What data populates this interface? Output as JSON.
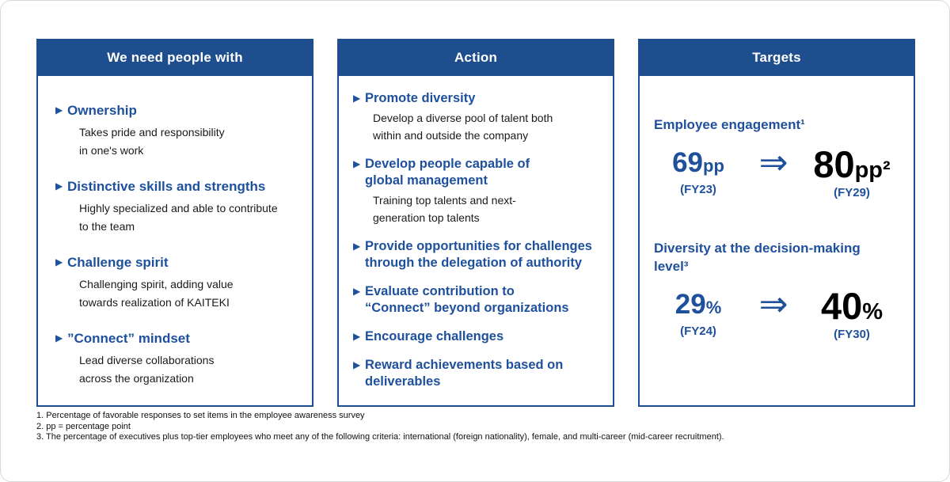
{
  "colors": {
    "header-blue": "#1F4E8E",
    "text-blue": "#1E509C",
    "ink": "#1a1a1a"
  },
  "icons": {
    "bullet": "▶",
    "arrow": "⇒"
  },
  "panels": {
    "need": {
      "title": "We need people with",
      "items": [
        {
          "heading": "Ownership",
          "desc": "Takes pride and responsibility\nin one's work"
        },
        {
          "heading": "Distinctive skills and strengths",
          "desc": "Highly specialized and able to contribute\nto the team"
        },
        {
          "heading": "Challenge spirit",
          "desc": "Challenging spirit, adding value\ntowards realization of KAITEKI"
        },
        {
          "heading": "”Connect” mindset",
          "desc": "Lead diverse collaborations\nacross the organization"
        }
      ]
    },
    "action": {
      "title": "Action",
      "items": [
        {
          "heading": "Promote diversity",
          "desc": "Develop a diverse pool of talent both\nwithin and outside the company"
        },
        {
          "heading": "Develop people capable of\nglobal management",
          "desc": "Training top talents and next-\ngeneration top talents"
        },
        {
          "heading": "Provide opportunities for challenges\nthrough the delegation of authority",
          "desc": ""
        },
        {
          "heading": "Evaluate contribution to\n“Connect” beyond organizations",
          "desc": ""
        },
        {
          "heading": "Encourage challenges",
          "desc": ""
        },
        {
          "heading": "Reward achievements based on\ndeliverables",
          "desc": ""
        }
      ]
    },
    "targets": {
      "title": "Targets",
      "groups": [
        {
          "heading": "Employee engagement¹",
          "from": {
            "value": "69",
            "unit": "pp",
            "period": "(FY23)"
          },
          "to": {
            "value": "80",
            "unit": "pp²",
            "period": "(FY29)"
          }
        },
        {
          "heading": "Diversity at the decision-making\nlevel³",
          "from": {
            "value": "29",
            "unit": "%",
            "period": "(FY24)"
          },
          "to": {
            "value": "40",
            "unit": "%",
            "period": "(FY30)"
          }
        }
      ]
    }
  },
  "footnotes": [
    "1. Percentage of favorable responses to set items in the employee awareness survey",
    "2. pp = percentage point",
    "3. The percentage of executives plus top-tier employees who meet any of the following criteria: international (foreign nationality), female, and multi-career (mid-career recruitment)."
  ]
}
